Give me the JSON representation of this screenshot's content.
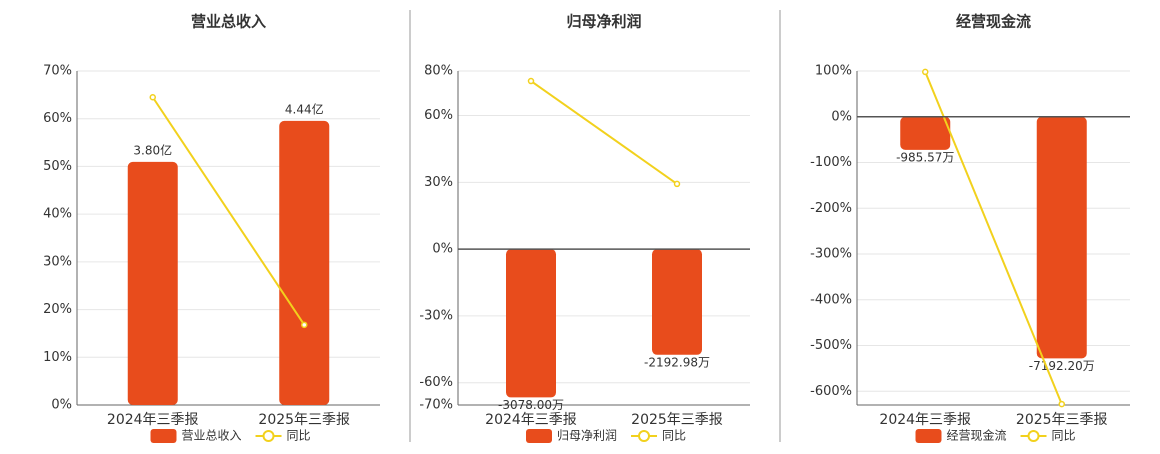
{
  "chart_data": [
    {
      "type": "bar",
      "title": "营业总收入",
      "categories": [
        "2024年三季报",
        "2025年三季报"
      ],
      "series": [
        {
          "name": "营业总收入",
          "color": "#e84c1c",
          "axis": "y2",
          "values": [
            3.8,
            4.44
          ],
          "value_labels": [
            "3.80亿",
            "4.44亿"
          ]
        },
        {
          "name": "同比",
          "color": "#f2d11d",
          "type": "line",
          "values": [
            64.5,
            16.8
          ]
        }
      ],
      "ylim": [
        0,
        70
      ],
      "yticks": [
        {
          "value": 0,
          "label": "0%"
        },
        {
          "value": 10,
          "label": "10%"
        },
        {
          "value": 20,
          "label": "20%"
        },
        {
          "value": 30,
          "label": "30%"
        },
        {
          "value": 40,
          "label": "40%"
        },
        {
          "value": 50,
          "label": "50%"
        },
        {
          "value": 60,
          "label": "60%"
        },
        {
          "value": 70,
          "label": "70%"
        }
      ],
      "y2lim": [
        0,
        5.22
      ],
      "grid": true
    },
    {
      "type": "bar",
      "title": "归母净利润",
      "categories": [
        "2024年三季报",
        "2025年三季报"
      ],
      "series": [
        {
          "name": "归母净利润",
          "color": "#e84c1c",
          "axis": "y2",
          "values": [
            -3078.0,
            -2192.98
          ],
          "value_labels": [
            "-3078.00万",
            "-2192.98万"
          ]
        },
        {
          "name": "同比",
          "color": "#f2d11d",
          "type": "line",
          "values": [
            75.5,
            29.3
          ]
        }
      ],
      "ylim": [
        -70,
        80
      ],
      "yticks": [
        {
          "value": -70,
          "label": "-70%"
        },
        {
          "value": -60,
          "label": "-60%"
        },
        {
          "value": -30,
          "label": "-30%"
        },
        {
          "value": 0,
          "label": "0%"
        },
        {
          "value": 30,
          "label": "30%"
        },
        {
          "value": 60,
          "label": "60%"
        },
        {
          "value": 80,
          "label": "80%"
        }
      ],
      "y2lim": [
        -3235,
        3697
      ],
      "grid": true
    },
    {
      "type": "bar",
      "title": "经营现金流",
      "categories": [
        "2024年三季报",
        "2025年三季报"
      ],
      "series": [
        {
          "name": "经营现金流",
          "color": "#e84c1c",
          "axis": "y2",
          "values": [
            -985.57,
            -7192.2
          ],
          "value_labels": [
            "-985.57万",
            "-7192.20万"
          ]
        },
        {
          "name": "同比",
          "color": "#f2d11d",
          "type": "line",
          "values": [
            98,
            -628
          ]
        }
      ],
      "ylim": [
        -630,
        100
      ],
      "yticks": [
        {
          "value": -600,
          "label": "-600%"
        },
        {
          "value": -500,
          "label": "-500%"
        },
        {
          "value": -400,
          "label": "-400%"
        },
        {
          "value": -300,
          "label": "-300%"
        },
        {
          "value": -200,
          "label": "-200%"
        },
        {
          "value": -100,
          "label": "-100%"
        },
        {
          "value": 0,
          "label": "0%"
        },
        {
          "value": 100,
          "label": "100%"
        }
      ],
      "y2lim": [
        -8580,
        1362
      ],
      "grid": true
    }
  ]
}
